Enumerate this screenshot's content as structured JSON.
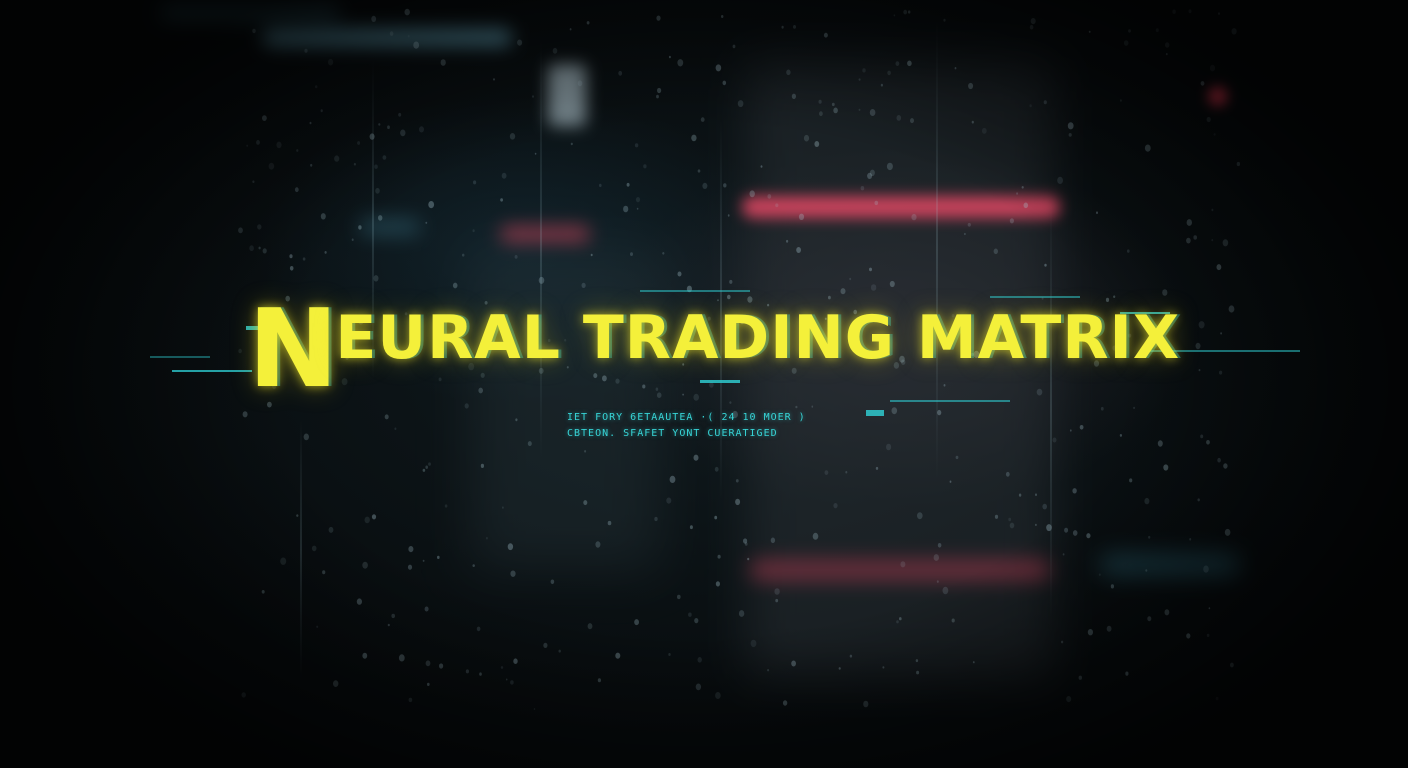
{
  "title": {
    "first_letter": "N",
    "rest": "EURAL TRADING MATRIX"
  },
  "subtitle": {
    "line1": "IET FORY 6ETAAUTEA ·( 24 10 MOER )",
    "line2": "CBTEON. SFAFET YONT CUERATIGED"
  },
  "colors": {
    "title": "#f4f03a",
    "accent_cyan": "#2fd3d8",
    "neon_red": "#ff4d6d",
    "background": "#05090b"
  }
}
